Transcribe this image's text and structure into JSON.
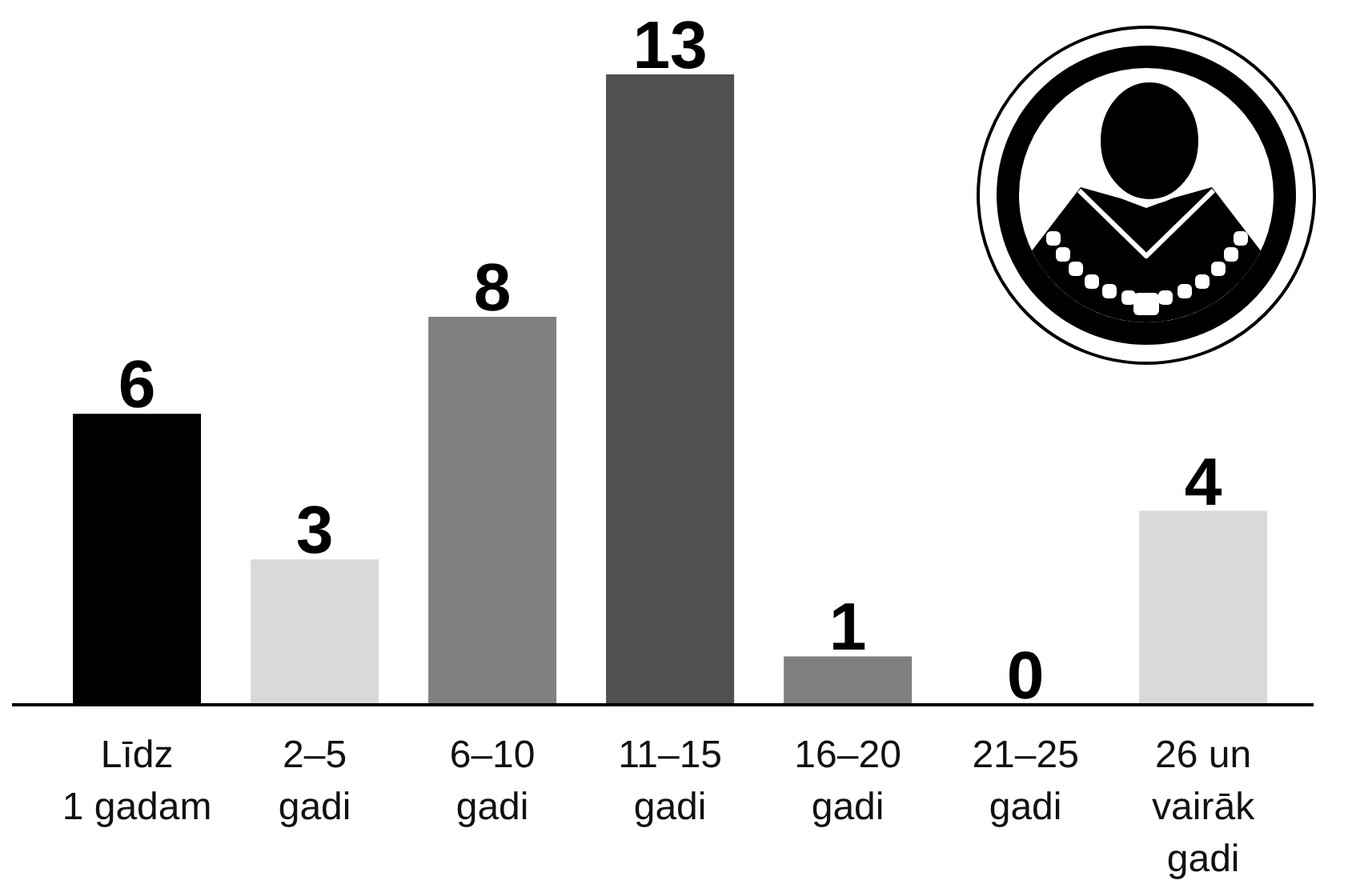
{
  "chart_data": {
    "type": "bar",
    "categories": [
      "Līdz 1 gadam",
      "2–5 gadi",
      "6–10 gadi",
      "11–15 gadi",
      "16–20 gadi",
      "21–25 gadi",
      "26 un vairāk gadi"
    ],
    "values": [
      6,
      3,
      8,
      13,
      1,
      0,
      4
    ],
    "colors": [
      "#000000",
      "#d9d9d9",
      "#808080",
      "#505050",
      "#808080",
      "#808080",
      "#d9d9d9"
    ],
    "data_labels": true
  }
}
